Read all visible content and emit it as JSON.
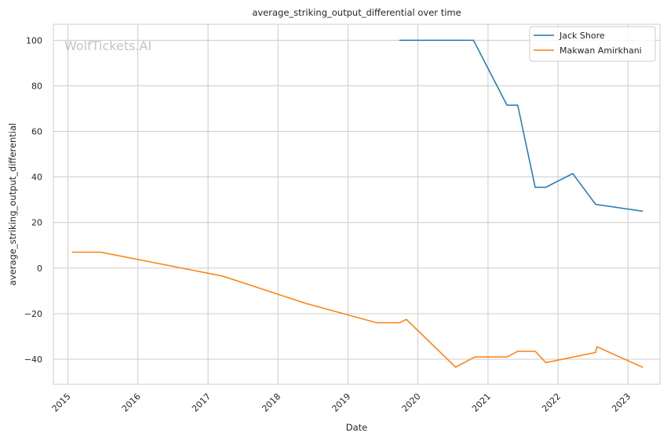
{
  "chart_data": {
    "type": "line",
    "title": "average_striking_output_differential over time",
    "xlabel": "Date",
    "ylabel": "average_striking_output_differential",
    "watermark": "WolfTickets.AI",
    "x_ticks": [
      "2015",
      "2016",
      "2017",
      "2018",
      "2019",
      "2020",
      "2021",
      "2022",
      "2023"
    ],
    "y_ticks": [
      "−40",
      "−20",
      "0",
      "20",
      "40",
      "60",
      "80",
      "100"
    ],
    "xlim": [
      "2014-10-17",
      "2023-06-17"
    ],
    "ylim": [
      -51,
      107
    ],
    "grid": true,
    "legend_position": "top-right",
    "series": [
      {
        "name": "Jack Shore",
        "color": "#1f77b4",
        "x": [
          "2019-09-28",
          "2020-10-17",
          "2021-04-10",
          "2021-06-05",
          "2021-09-04",
          "2021-10-30",
          "2022-03-19",
          "2022-07-16",
          "2023-03-18"
        ],
        "y": [
          100,
          100,
          71.5,
          71.5,
          35.5,
          35.5,
          41.5,
          28,
          25
        ]
      },
      {
        "name": "Makwan Amirkhani",
        "color": "#ff7f0e",
        "x": [
          "2015-01-24",
          "2015-06-20",
          "2017-03-18",
          "2018-05-27",
          "2019-06-01",
          "2019-09-28",
          "2019-11-02",
          "2020-07-16",
          "2020-10-24",
          "2021-04-10",
          "2021-06-05",
          "2021-09-04",
          "2021-10-30",
          "2022-07-16",
          "2022-07-23",
          "2023-03-18"
        ],
        "y": [
          7,
          7,
          -3.5,
          -15.5,
          -24,
          -24,
          -22.5,
          -43.5,
          -39,
          -39,
          -36.5,
          -36.5,
          -41.5,
          -37,
          -34.5,
          -43.5
        ]
      }
    ]
  }
}
